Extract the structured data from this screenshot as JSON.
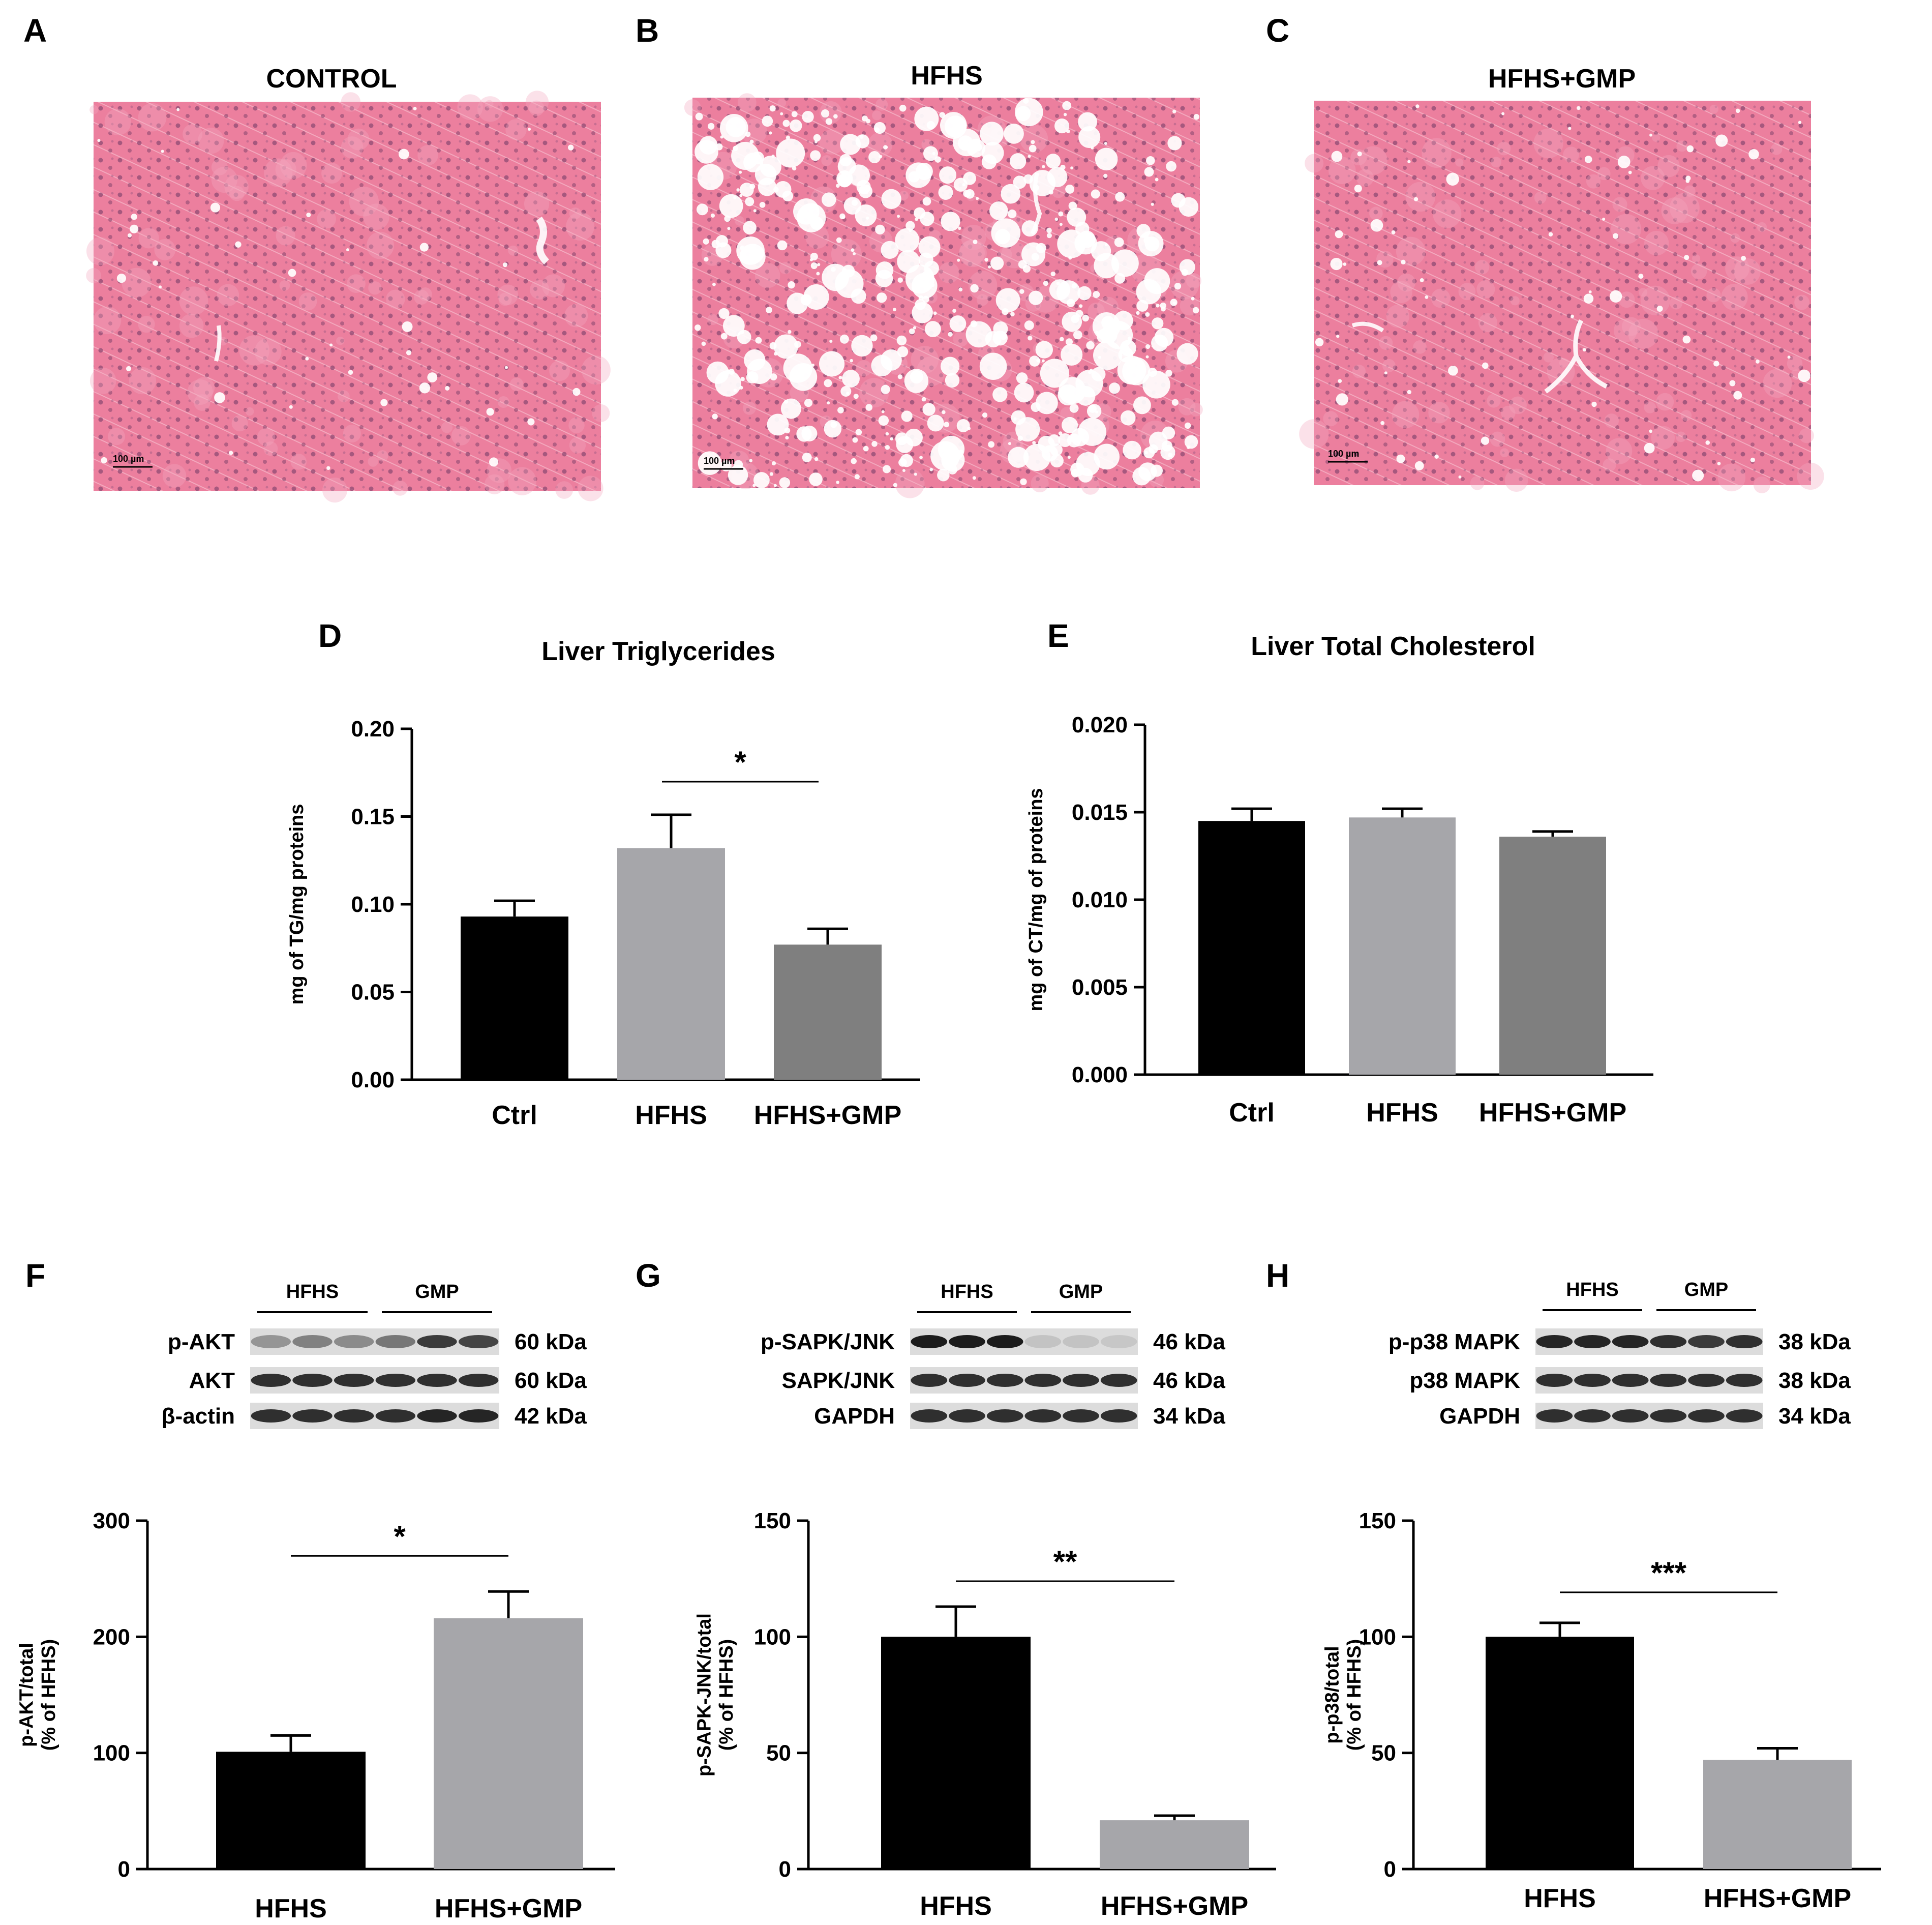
{
  "panels": {
    "A": {
      "letter": "A",
      "title": "CONTROL",
      "scale_bar": "100 µm"
    },
    "B": {
      "letter": "B",
      "title": "HFHS",
      "scale_bar": "100 µm"
    },
    "C": {
      "letter": "C",
      "title": "HFHS+GMP",
      "scale_bar": "100 µm"
    }
  },
  "histology_colors": {
    "tissue": "#ec7f9e",
    "tissue_light": "#f4a9c0",
    "nucleus": "#8e4a72",
    "vacuole": "#ffffff"
  },
  "blots": [
    {
      "letter": "F",
      "groups": [
        "HFHS",
        "GMP"
      ],
      "rows": [
        {
          "label": "p-AKT",
          "size": "60 kDa"
        },
        {
          "label": "AKT",
          "size": "60 kDa"
        },
        {
          "label": "β-actin",
          "size": "42 kDa"
        }
      ]
    },
    {
      "letter": "G",
      "groups": [
        "HFHS",
        "GMP"
      ],
      "rows": [
        {
          "label": "p-SAPK/JNK",
          "size": "46 kDa"
        },
        {
          "label": "SAPK/JNK",
          "size": "46 kDa"
        },
        {
          "label": "GAPDH",
          "size": "34 kDa"
        }
      ]
    },
    {
      "letter": "H",
      "groups": [
        "HFHS",
        "GMP"
      ],
      "rows": [
        {
          "label": "p-p38 MAPK",
          "size": "38 kDa"
        },
        {
          "label": "p38 MAPK",
          "size": "38 kDa"
        },
        {
          "label": "GAPDH",
          "size": "34 kDa"
        }
      ]
    }
  ],
  "chart_data": [
    {
      "panel": "D",
      "type": "bar",
      "title": "Liver Triglycerides",
      "categories": [
        "Ctrl",
        "HFHS",
        "HFHS+GMP"
      ],
      "values": [
        0.093,
        0.132,
        0.077
      ],
      "errors": [
        0.009,
        0.019,
        0.009
      ],
      "colors": [
        "#000000",
        "#a6a6aa",
        "#7f7f7f"
      ],
      "ylabel": "mg of TG/mg proteins",
      "ylim": [
        0,
        0.2
      ],
      "yticks": [
        "0.00",
        "0.05",
        "0.10",
        "0.15",
        "0.20"
      ],
      "significance": [
        {
          "from": 1,
          "to": 2,
          "label": "*"
        }
      ]
    },
    {
      "panel": "E",
      "type": "bar",
      "title": "Liver Total Cholesterol",
      "categories": [
        "Ctrl",
        "HFHS",
        "HFHS+GMP"
      ],
      "values": [
        0.0145,
        0.0147,
        0.0136
      ],
      "errors": [
        0.0007,
        0.0005,
        0.0003
      ],
      "colors": [
        "#000000",
        "#a6a6aa",
        "#7f7f7f"
      ],
      "ylabel": "mg of CT/mg of proteins",
      "ylim": [
        0,
        0.02
      ],
      "yticks": [
        "0.000",
        "0.005",
        "0.010",
        "0.015",
        "0.020"
      ],
      "significance": []
    },
    {
      "panel": "F",
      "type": "bar",
      "title": "",
      "categories": [
        "HFHS",
        "HFHS+GMP"
      ],
      "values": [
        101,
        216
      ],
      "errors": [
        14,
        23
      ],
      "colors": [
        "#000000",
        "#a6a6aa"
      ],
      "ylabel": "p-AKT/total (% of HFHS)",
      "ylim": [
        0,
        300
      ],
      "yticks": [
        "0",
        "100",
        "200",
        "300"
      ],
      "significance": [
        {
          "from": 0,
          "to": 1,
          "label": "*"
        }
      ]
    },
    {
      "panel": "G",
      "type": "bar",
      "title": "",
      "categories": [
        "HFHS",
        "HFHS+GMP"
      ],
      "values": [
        100,
        21
      ],
      "errors": [
        13,
        2
      ],
      "colors": [
        "#000000",
        "#a6a6aa"
      ],
      "ylabel": "p-SAPK-JNK/total (% of HFHS)",
      "ylim": [
        0,
        150
      ],
      "yticks": [
        "0",
        "50",
        "100",
        "150"
      ],
      "significance": [
        {
          "from": 0,
          "to": 1,
          "label": "**"
        }
      ]
    },
    {
      "panel": "H",
      "type": "bar",
      "title": "",
      "categories": [
        "HFHS",
        "HFHS+GMP"
      ],
      "values": [
        100,
        47
      ],
      "errors": [
        6,
        5
      ],
      "colors": [
        "#000000",
        "#a6a6aa"
      ],
      "ylabel": "p-p38/total (% of HFHS)",
      "ylim": [
        0,
        150
      ],
      "yticks": [
        "0",
        "50",
        "100",
        "150"
      ],
      "significance": [
        {
          "from": 0,
          "to": 1,
          "label": "***"
        }
      ]
    }
  ]
}
